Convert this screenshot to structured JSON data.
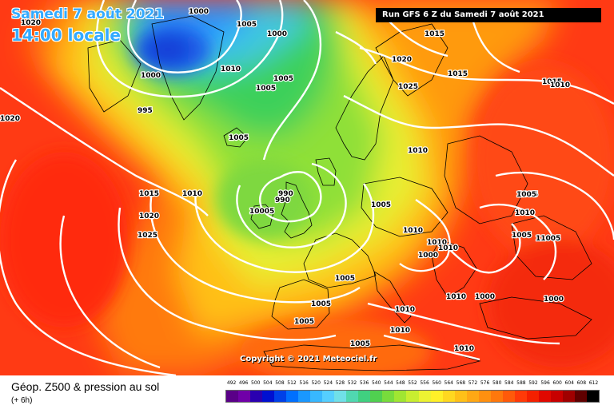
{
  "header": {
    "date_line": "Samedi 7 août 2021",
    "time_line": "14:00 locale",
    "run_label": "Run GFS 6 Z du Samedi 7 août 2021"
  },
  "copyright": "Copyright © 2021 Meteociel.fr",
  "footer": {
    "field_title": "Géop. Z500 & pression au sol",
    "lead_time": "(+ 6h)"
  },
  "legend": {
    "values": [
      "492",
      "496",
      "500",
      "504",
      "508",
      "512",
      "516",
      "520",
      "524",
      "528",
      "532",
      "536",
      "540",
      "544",
      "548",
      "552",
      "556",
      "560",
      "564",
      "568",
      "572",
      "576",
      "580",
      "584",
      "588",
      "592",
      "596",
      "600",
      "604",
      "608",
      "612"
    ],
    "colors": [
      "#5a0088",
      "#7000a8",
      "#2a00b0",
      "#0010d0",
      "#0040e8",
      "#0070ff",
      "#1a98ff",
      "#38b8ff",
      "#55cfff",
      "#70e0e8",
      "#50d8b0",
      "#40d080",
      "#50d050",
      "#78dc3c",
      "#a0e632",
      "#c8ee30",
      "#ecf232",
      "#fff028",
      "#ffd820",
      "#ffc018",
      "#ffa814",
      "#ff9010",
      "#ff780c",
      "#ff5a0a",
      "#ff3a08",
      "#f42000",
      "#e00800",
      "#c80000",
      "#a00000",
      "#600000",
      "#000000"
    ]
  },
  "isobar_labels": [
    {
      "text": "1000"
    },
    {
      "text": "1005"
    },
    {
      "text": "1000"
    },
    {
      "text": "1010"
    },
    {
      "text": "1005"
    },
    {
      "text": "1000"
    },
    {
      "text": "995"
    },
    {
      "text": "1020"
    },
    {
      "text": "1005"
    },
    {
      "text": "1005"
    },
    {
      "text": "1015"
    },
    {
      "text": "1010"
    },
    {
      "text": "1020"
    },
    {
      "text": "1025"
    },
    {
      "text": "990"
    },
    {
      "text": "990"
    },
    {
      "text": "10005"
    },
    {
      "text": "1005"
    },
    {
      "text": "1005"
    },
    {
      "text": "1005"
    },
    {
      "text": "1005"
    },
    {
      "text": "1020"
    },
    {
      "text": "1015"
    },
    {
      "text": "1020"
    },
    {
      "text": "1025"
    },
    {
      "text": "1015"
    },
    {
      "text": "1005"
    },
    {
      "text": "1010"
    },
    {
      "text": "1010"
    },
    {
      "text": "1010"
    },
    {
      "text": "1005"
    },
    {
      "text": "1010"
    },
    {
      "text": "1005"
    },
    {
      "text": "1000"
    },
    {
      "text": "11005"
    },
    {
      "text": "1000"
    },
    {
      "text": "1000"
    },
    {
      "text": "1010"
    },
    {
      "text": "1010"
    },
    {
      "text": "1010"
    },
    {
      "text": "1010"
    },
    {
      "text": "1015"
    },
    {
      "text": "1010"
    },
    {
      "text": "1010"
    },
    {
      "text": "1005"
    }
  ]
}
